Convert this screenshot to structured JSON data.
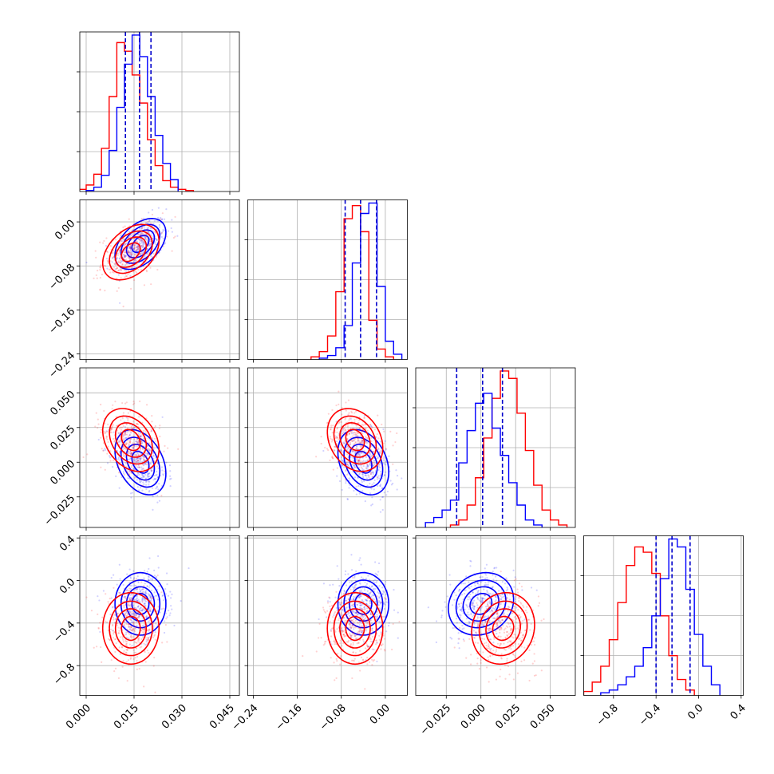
{
  "chart_data": {
    "type": "corner",
    "grid": true,
    "colors": {
      "blue": "#0000ff",
      "red": "#ff0000",
      "quantile": "#0000cc",
      "grid": "#b0b0b0"
    },
    "parameters": [
      {
        "range": [
          -0.002,
          0.048
        ],
        "ticks": [
          0.0,
          0.015,
          0.03,
          0.045
        ],
        "tick_labels": [
          "0.000",
          "0.015",
          "0.030",
          "0.045"
        ]
      },
      {
        "range": [
          -0.25,
          0.04
        ],
        "ticks": [
          -0.24,
          -0.16,
          -0.08,
          0.0
        ],
        "tick_labels": [
          "−0.24",
          "−0.16",
          "−0.08",
          "0.00"
        ]
      },
      {
        "range": [
          -0.047,
          0.068
        ],
        "ticks": [
          -0.025,
          0.0,
          0.025,
          0.05
        ],
        "tick_labels": [
          "−0.025",
          "0.000",
          "0.025",
          "0.050"
        ]
      },
      {
        "range": [
          -1.08,
          0.42
        ],
        "ticks": [
          -0.8,
          -0.4,
          0.0,
          0.4
        ],
        "tick_labels": [
          "−0.8",
          "−0.4",
          "0.0",
          "0.4"
        ]
      }
    ],
    "series": [
      {
        "color": "#0000ff",
        "quantiles": [
          [
            0.0123,
            0.0167,
            0.0203
          ],
          [
            -0.073,
            -0.045,
            -0.016
          ],
          [
            -0.0175,
            0.0012,
            0.0155
          ],
          [
            -0.4,
            -0.25,
            -0.08
          ]
        ],
        "hist": [
          {
            "edges": [
              0.0,
              0.0024,
              0.0048,
              0.0072,
              0.0096,
              0.012,
              0.0144,
              0.0168,
              0.0192,
              0.0216,
              0.024,
              0.0264,
              0.0288
            ],
            "counts": [
              1,
              4,
              15,
              38,
              78,
              118,
              145,
              125,
              88,
              52,
              26,
              11
            ]
          },
          {
            "edges": [
              -0.12,
              -0.105,
              -0.09,
              -0.075,
              -0.06,
              -0.045,
              -0.03,
              -0.015,
              0.0,
              0.015,
              0.03
            ],
            "counts": [
              1,
              3,
              9,
              26,
              74,
              112,
              120,
              56,
              14,
              4
            ]
          },
          {
            "edges": [
              -0.04,
              -0.034,
              -0.028,
              -0.022,
              -0.016,
              -0.01,
              -0.004,
              0.002,
              0.008,
              0.014,
              0.02,
              0.026,
              0.032,
              0.038,
              0.044
            ],
            "counts": [
              4,
              8,
              14,
              22,
              52,
              78,
              100,
              108,
              80,
              58,
              36,
              18,
              6,
              2
            ]
          },
          {
            "edges": [
              -0.92,
              -0.84,
              -0.76,
              -0.68,
              -0.6,
              -0.52,
              -0.44,
              -0.36,
              -0.28,
              -0.2,
              -0.12,
              -0.04,
              0.04,
              0.12,
              0.2
            ],
            "counts": [
              2,
              4,
              8,
              14,
              22,
              36,
              60,
              88,
              118,
              112,
              80,
              46,
              22,
              8
            ]
          }
        ],
        "mean": [
          0.017,
          -0.04,
          0.0,
          -0.22
        ],
        "sigma": [
          0.0038,
          0.022,
          0.0112,
          0.14
        ],
        "corr": [
          [
            1.0,
            0.45,
            -0.35,
            0.0
          ],
          [
            0.45,
            1.0,
            -0.3,
            0.0
          ],
          [
            -0.35,
            -0.3,
            1.0,
            0.15
          ],
          [
            0.0,
            0.0,
            0.15,
            1.0
          ]
        ]
      },
      {
        "color": "#ff0000",
        "quantiles": [
          [
            0.0123,
            0.0167,
            0.0203
          ],
          [
            -0.073,
            -0.045,
            -0.016
          ],
          [
            -0.0175,
            0.0012,
            0.0155
          ],
          [
            -0.4,
            -0.25,
            -0.08
          ]
        ],
        "hist": [
          {
            "edges": [
              -0.0024,
              0.0,
              0.0024,
              0.0048,
              0.0072,
              0.0096,
              0.012,
              0.0144,
              0.0168,
              0.0192,
              0.0216,
              0.024,
              0.0264,
              0.0288,
              0.0312,
              0.0336
            ],
            "counts": [
              2,
              6,
              16,
              40,
              88,
              138,
              130,
              108,
              82,
              48,
              24,
              10,
              4,
              2,
              1
            ]
          },
          {
            "edges": [
              -0.135,
              -0.12,
              -0.105,
              -0.09,
              -0.075,
              -0.06,
              -0.045,
              -0.03,
              -0.015,
              0.0,
              0.015
            ],
            "counts": [
              2,
              6,
              18,
              52,
              108,
              118,
              98,
              30,
              8,
              2
            ]
          },
          {
            "edges": [
              -0.022,
              -0.016,
              -0.01,
              -0.004,
              0.002,
              0.008,
              0.014,
              0.02,
              0.026,
              0.032,
              0.038,
              0.044,
              0.05,
              0.056,
              0.062
            ],
            "counts": [
              2,
              6,
              18,
              40,
              72,
              104,
              126,
              120,
              92,
              62,
              34,
              14,
              6,
              2
            ]
          },
          {
            "edges": [
              -1.08,
              -1.0,
              -0.92,
              -0.84,
              -0.76,
              -0.68,
              -0.6,
              -0.52,
              -0.44,
              -0.36,
              -0.28,
              -0.2,
              -0.12,
              -0.04
            ],
            "counts": [
              3,
              10,
              22,
              42,
              70,
              98,
              112,
              108,
              92,
              60,
              30,
              12,
              4
            ]
          }
        ],
        "mean": [
          0.014,
          -0.055,
          0.016,
          -0.45
        ],
        "sigma": [
          0.0042,
          0.024,
          0.0108,
          0.16
        ],
        "corr": [
          [
            1.0,
            0.4,
            -0.3,
            0.0
          ],
          [
            0.4,
            1.0,
            -0.25,
            0.0
          ],
          [
            -0.3,
            -0.25,
            1.0,
            0.1
          ],
          [
            0.0,
            0.0,
            0.1,
            1.0
          ]
        ]
      }
    ]
  }
}
